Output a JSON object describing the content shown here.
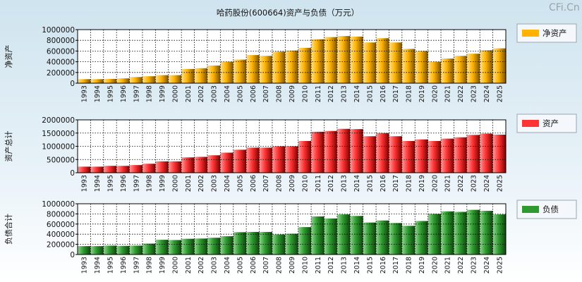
{
  "chart_data": {
    "title": "哈药股份(600664)资产与负债（万元）",
    "watermark": "CFi.Cn",
    "type": "bar",
    "categories": [
      "1993",
      "1994",
      "1995",
      "1996",
      "1997",
      "1998",
      "1999",
      "2000",
      "2001",
      "2002",
      "2003",
      "2004",
      "2005",
      "2006",
      "2007",
      "2008",
      "2009",
      "2010",
      "2011",
      "2012",
      "2013",
      "2014",
      "2015",
      "2016",
      "2017",
      "2018",
      "2019",
      "2020",
      "2021",
      "2022",
      "2023",
      "2024",
      "2025"
    ],
    "panels": [
      {
        "name": "净资产",
        "ylabel": "净资产",
        "legend": "净资产",
        "color": "#ffb300",
        "dark": "#7a5200",
        "light": "#ffe08a",
        "ylim": [
          0,
          1000000
        ],
        "yticks": [
          0,
          200000,
          400000,
          600000,
          800000,
          1000000
        ],
        "values": [
          75000,
          75000,
          80000,
          90000,
          115000,
          130000,
          150000,
          150000,
          265000,
          280000,
          330000,
          400000,
          440000,
          525000,
          510000,
          590000,
          610000,
          660000,
          820000,
          860000,
          880000,
          870000,
          760000,
          840000,
          760000,
          640000,
          600000,
          400000,
          460000,
          510000,
          550000,
          615000,
          650000
        ]
      },
      {
        "name": "资产",
        "ylabel": "资产总计",
        "legend": "资产",
        "color": "#ff3333",
        "dark": "#7a0000",
        "light": "#ff9a9a",
        "ylim": [
          0,
          2000000
        ],
        "yticks": [
          0,
          500000,
          1000000,
          1500000,
          2000000
        ],
        "values": [
          230000,
          230000,
          260000,
          260000,
          290000,
          340000,
          430000,
          430000,
          580000,
          600000,
          660000,
          760000,
          870000,
          950000,
          950000,
          1000000,
          1000000,
          1200000,
          1550000,
          1580000,
          1660000,
          1650000,
          1380000,
          1500000,
          1380000,
          1200000,
          1260000,
          1200000,
          1290000,
          1340000,
          1430000,
          1480000,
          1440000
        ]
      },
      {
        "name": "负债",
        "ylabel": "负债合计",
        "legend": "负债",
        "color": "#2e9a2e",
        "dark": "#0f440f",
        "light": "#8fd68f",
        "ylim": [
          0,
          1000000
        ],
        "yticks": [
          0,
          200000,
          400000,
          600000,
          800000,
          1000000
        ],
        "values": [
          165000,
          165000,
          175000,
          170000,
          175000,
          215000,
          290000,
          285000,
          310000,
          315000,
          330000,
          360000,
          440000,
          445000,
          445000,
          395000,
          410000,
          540000,
          750000,
          710000,
          790000,
          760000,
          630000,
          670000,
          620000,
          565000,
          660000,
          800000,
          850000,
          840000,
          880000,
          860000,
          790000
        ]
      }
    ]
  }
}
